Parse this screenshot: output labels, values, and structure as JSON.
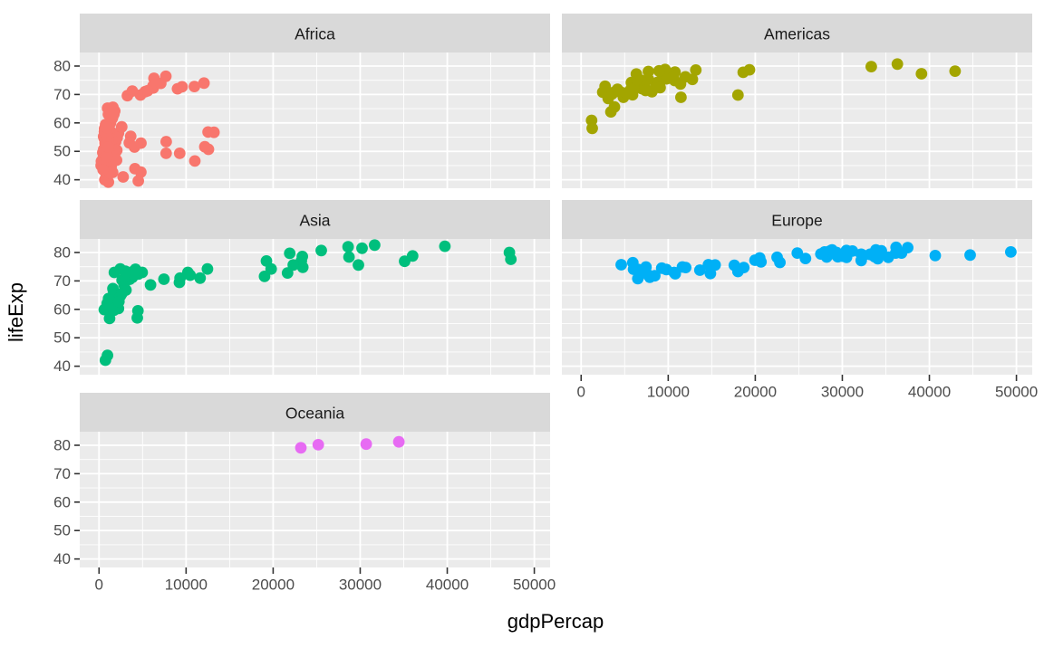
{
  "figure": {
    "kind": "faceted scatter plot",
    "background": "#FFFFFF",
    "panel_fill": "#EBEBEB",
    "strip_fill": "#D9D9D9",
    "gridline_color": "#FFFFFF",
    "tick_mark_color": "#333333"
  },
  "chart_data": {
    "type": "scatter",
    "title": "",
    "xlabel": "gdpPercap",
    "ylabel": "lifeExp",
    "legend": "none",
    "grid": {
      "major": true,
      "minor": true
    },
    "x_ticks": [
      0,
      10000,
      20000,
      30000,
      40000,
      50000
    ],
    "x_tick_labels": [
      "0",
      "10000",
      "20000",
      "30000",
      "40000",
      "50000"
    ],
    "x_minor_ticks": [
      5000,
      15000,
      25000,
      35000,
      45000
    ],
    "y_ticks": [
      40,
      50,
      60,
      70,
      80
    ],
    "y_tick_labels": [
      "40",
      "50",
      "60",
      "70",
      "80"
    ],
    "y_minor_ticks": [
      45,
      55,
      65,
      75
    ],
    "x_domain": [
      -2215,
      51813
    ],
    "y_domain": [
      37.02,
      84.77
    ],
    "facet_layout": "2 columns x 3 rows, row-major order",
    "facets": [
      {
        "name": "Africa",
        "color": "#F8766D",
        "points": [
          [
            5288,
            71.0
          ],
          [
            2773,
            41.0
          ],
          [
            1373,
            54.4
          ],
          [
            11004,
            46.6
          ],
          [
            1038,
            50.6
          ],
          [
            446,
            47.4
          ],
          [
            1934,
            49.9
          ],
          [
            739,
            43.3
          ],
          [
            1156,
            50.5
          ],
          [
            1076,
            63.0
          ],
          [
            241,
            45.0
          ],
          [
            3484,
            53.0
          ],
          [
            1649,
            46.8
          ],
          [
            1908,
            53.4
          ],
          [
            4755,
            69.8
          ],
          [
            7703,
            49.3
          ],
          [
            525,
            55.2
          ],
          [
            530,
            50.7
          ],
          [
            12522,
            56.8
          ],
          [
            661,
            58.0
          ],
          [
            1112,
            58.5
          ],
          [
            912,
            53.7
          ],
          [
            576,
            45.5
          ],
          [
            1288,
            51.0
          ],
          [
            1391,
            44.6
          ],
          [
            531,
            43.8
          ],
          [
            9535,
            72.7
          ],
          [
            895,
            57.3
          ],
          [
            665,
            45.0
          ],
          [
            951,
            51.8
          ],
          [
            1579,
            62.2
          ],
          [
            9022,
            72.0
          ],
          [
            3258,
            69.6
          ],
          [
            634,
            44.0
          ],
          [
            4072,
            51.5
          ],
          [
            601,
            54.5
          ],
          [
            1615,
            46.6
          ],
          [
            6316,
            75.7
          ],
          [
            786,
            43.4
          ],
          [
            1353,
            64.3
          ],
          [
            1520,
            61.6
          ],
          [
            830,
            41.0
          ],
          [
            882,
            45.9
          ],
          [
            7711,
            53.4
          ],
          [
            2232,
            56.4
          ],
          [
            4128,
            43.9
          ],
          [
            899,
            49.7
          ],
          [
            857,
            57.6
          ],
          [
            6192,
            73.0
          ],
          [
            928,
            47.8
          ],
          [
            1072,
            39.2
          ],
          [
            672,
            40.0
          ],
          [
            6223,
            72.3
          ],
          [
            4797,
            42.7
          ],
          [
            1441,
            56.7
          ],
          [
            12570,
            50.7
          ],
          [
            1217,
            52.3
          ],
          [
            430,
            49.6
          ],
          [
            2042,
            50.4
          ],
          [
            706,
            44.7
          ],
          [
            1704,
            50.7
          ],
          [
            986,
            65.2
          ],
          [
            278,
            46.5
          ],
          [
            3633,
            55.3
          ],
          [
            1545,
            48.3
          ],
          [
            2082,
            54.8
          ],
          [
            5581,
            71.3
          ],
          [
            12154,
            51.6
          ],
          [
            641,
            58.0
          ],
          [
            691,
            52.9
          ],
          [
            13206,
            56.7
          ],
          [
            753,
            59.4
          ],
          [
            1328,
            60.0
          ],
          [
            943,
            56.0
          ],
          [
            579,
            46.4
          ],
          [
            1463,
            54.1
          ],
          [
            1569,
            42.6
          ],
          [
            415,
            45.7
          ],
          [
            12057,
            74.0
          ],
          [
            1045,
            59.4
          ],
          [
            759,
            48.3
          ],
          [
            1043,
            54.5
          ],
          [
            1803,
            64.2
          ],
          [
            10957,
            72.8
          ],
          [
            3820,
            71.2
          ],
          [
            824,
            42.1
          ],
          [
            4811,
            52.9
          ],
          [
            620,
            56.9
          ],
          [
            2014,
            46.9
          ],
          [
            7670,
            76.4
          ],
          [
            863,
            46.2
          ],
          [
            1598,
            65.5
          ],
          [
            1712,
            63.1
          ],
          [
            863,
            42.6
          ],
          [
            926,
            48.2
          ],
          [
            9270,
            49.3
          ],
          [
            2602,
            58.6
          ],
          [
            4513,
            39.6
          ],
          [
            1107,
            52.5
          ],
          [
            883,
            58.4
          ],
          [
            7093,
            73.9
          ],
          [
            1056,
            51.5
          ],
          [
            1271,
            42.4
          ],
          [
            470,
            43.5
          ]
        ]
      },
      {
        "name": "Americas",
        "color": "#A3A500",
        "points": [
          [
            8798,
            74.3
          ],
          [
            3413,
            63.9
          ],
          [
            8131,
            71.0
          ],
          [
            33329,
            79.8
          ],
          [
            10779,
            77.9
          ],
          [
            5755,
            71.7
          ],
          [
            7723,
            78.1
          ],
          [
            6341,
            77.2
          ],
          [
            4564,
            70.8
          ],
          [
            5773,
            74.2
          ],
          [
            5352,
            70.7
          ],
          [
            4858,
            69.0
          ],
          [
            1270,
            58.1
          ],
          [
            3100,
            68.6
          ],
          [
            6995,
            72.0
          ],
          [
            10742,
            74.9
          ],
          [
            2475,
            70.8
          ],
          [
            9120,
            74.7
          ],
          [
            3784,
            70.8
          ],
          [
            5909,
            69.9
          ],
          [
            18617,
            77.8
          ],
          [
            11460,
            69.0
          ],
          [
            39097,
            77.3
          ],
          [
            7727,
            75.3
          ],
          [
            8605,
            72.8
          ],
          [
            12779,
            75.3
          ],
          [
            3822,
            65.6
          ],
          [
            9066,
            72.4
          ],
          [
            36319,
            80.7
          ],
          [
            13172,
            78.6
          ],
          [
            7007,
            72.9
          ],
          [
            9645,
            78.8
          ],
          [
            8948,
            78.3
          ],
          [
            6025,
            72.2
          ],
          [
            6873,
            75.0
          ],
          [
            5728,
            71.9
          ],
          [
            5186,
            70.3
          ],
          [
            1202,
            60.9
          ],
          [
            3548,
            70.2
          ],
          [
            7321,
            72.6
          ],
          [
            11978,
            76.2
          ],
          [
            2749,
            72.9
          ],
          [
            9809,
            75.5
          ],
          [
            4173,
            71.8
          ],
          [
            7409,
            71.4
          ],
          [
            19329,
            78.7
          ],
          [
            18009,
            69.8
          ],
          [
            42952,
            78.2
          ],
          [
            10611,
            76.4
          ],
          [
            11416,
            73.7
          ]
        ]
      },
      {
        "name": "Asia",
        "color": "#00BF7D",
        "points": [
          [
            727,
            42.1
          ],
          [
            23404,
            74.8
          ],
          [
            1136,
            62.0
          ],
          [
            1213,
            56.8
          ],
          [
            3119,
            72.0
          ],
          [
            30209,
            81.5
          ],
          [
            1747,
            62.9
          ],
          [
            2874,
            68.6
          ],
          [
            9241,
            69.5
          ],
          [
            4391,
            57.0
          ],
          [
            21906,
            79.7
          ],
          [
            28605,
            82.0
          ],
          [
            3845,
            71.3
          ],
          [
            1647,
            66.7
          ],
          [
            19234,
            77.0
          ],
          [
            35110,
            76.9
          ],
          [
            9314,
            71.0
          ],
          [
            10207,
            73.0
          ],
          [
            2141,
            65.0
          ],
          [
            611,
            59.9
          ],
          [
            1057,
            61.3
          ],
          [
            19775,
            74.2
          ],
          [
            2093,
            63.6
          ],
          [
            2651,
            70.3
          ],
          [
            19015,
            71.6
          ],
          [
            36023,
            78.8
          ],
          [
            3015,
            70.8
          ],
          [
            3746,
            73.1
          ],
          [
            23235,
            77.0
          ],
          [
            5913,
            68.6
          ],
          [
            1764,
            73.0
          ],
          [
            4515,
            72.4
          ],
          [
            2235,
            60.3
          ],
          [
            975,
            43.8
          ],
          [
            29796,
            75.6
          ],
          [
            1391,
            64.1
          ],
          [
            1714,
            59.7
          ],
          [
            4959,
            73.0
          ],
          [
            39725,
            82.2
          ],
          [
            2452,
            64.7
          ],
          [
            3541,
            70.6
          ],
          [
            11606,
            71.0
          ],
          [
            4471,
            59.5
          ],
          [
            25523,
            80.7
          ],
          [
            31656,
            82.6
          ],
          [
            4519,
            72.5
          ],
          [
            1593,
            67.3
          ],
          [
            23348,
            78.6
          ],
          [
            47307,
            77.6
          ],
          [
            10461,
            72.0
          ],
          [
            12452,
            74.2
          ],
          [
            3096,
            66.8
          ],
          [
            944,
            62.1
          ],
          [
            1091,
            63.8
          ],
          [
            22316,
            75.6
          ],
          [
            2606,
            65.5
          ],
          [
            3190,
            71.7
          ],
          [
            21655,
            72.8
          ],
          [
            47143,
            80.0
          ],
          [
            3970,
            72.4
          ],
          [
            4185,
            74.1
          ],
          [
            28718,
            78.4
          ],
          [
            7458,
            70.6
          ],
          [
            2442,
            74.2
          ],
          [
            3025,
            73.4
          ],
          [
            2281,
            62.7
          ]
        ]
      },
      {
        "name": "Europe",
        "color": "#00B0F6",
        "points": [
          [
            4604,
            75.7
          ],
          [
            32418,
            79.0
          ],
          [
            30486,
            78.3
          ],
          [
            6019,
            74.1
          ],
          [
            7697,
            72.1
          ],
          [
            11628,
            74.9
          ],
          [
            17596,
            75.5
          ],
          [
            32167,
            77.2
          ],
          [
            28205,
            78.4
          ],
          [
            28926,
            79.6
          ],
          [
            30036,
            78.7
          ],
          [
            22514,
            78.3
          ],
          [
            14844,
            72.6
          ],
          [
            31163,
            80.5
          ],
          [
            34077,
            77.8
          ],
          [
            27968,
            80.2
          ],
          [
            6557,
            74.0
          ],
          [
            33725,
            78.5
          ],
          [
            44684,
            79.1
          ],
          [
            12002,
            74.7
          ],
          [
            19971,
            77.3
          ],
          [
            7885,
            71.3
          ],
          [
            7236,
            73.2
          ],
          [
            13639,
            73.8
          ],
          [
            20660,
            76.7
          ],
          [
            24835,
            79.8
          ],
          [
            29342,
            80.0
          ],
          [
            34481,
            80.6
          ],
          [
            6508,
            70.8
          ],
          [
            29479,
            78.5
          ],
          [
            5937,
            76.4
          ],
          [
            36126,
            79.8
          ],
          [
            33693,
            79.4
          ],
          [
            7446,
            74.9
          ],
          [
            10681,
            73.0
          ],
          [
            14619,
            75.7
          ],
          [
            22833,
            76.5
          ],
          [
            35278,
            78.3
          ],
          [
            33207,
            79.3
          ],
          [
            30470,
            80.7
          ],
          [
            32170,
            79.4
          ],
          [
            27538,
            79.5
          ],
          [
            18009,
            73.3
          ],
          [
            36181,
            81.8
          ],
          [
            40676,
            78.9
          ],
          [
            28570,
            80.5
          ],
          [
            9254,
            74.5
          ],
          [
            36798,
            79.8
          ],
          [
            49357,
            80.2
          ],
          [
            15390,
            75.6
          ],
          [
            20510,
            78.1
          ],
          [
            10808,
            72.5
          ],
          [
            9787,
            74.0
          ],
          [
            18678,
            74.7
          ],
          [
            25768,
            77.9
          ],
          [
            28821,
            80.9
          ],
          [
            33860,
            80.9
          ],
          [
            37506,
            81.7
          ],
          [
            8458,
            71.8
          ],
          [
            33203,
            79.4
          ]
        ]
      },
      {
        "name": "Oceania",
        "color": "#E76BF3",
        "points": [
          [
            30688,
            80.4
          ],
          [
            23190,
            79.1
          ],
          [
            34435,
            81.2
          ],
          [
            25185,
            80.2
          ]
        ]
      }
    ]
  }
}
